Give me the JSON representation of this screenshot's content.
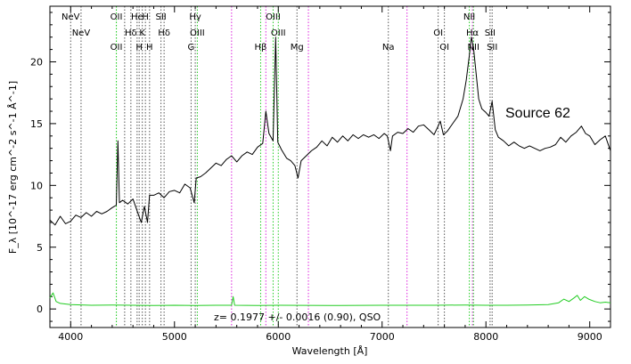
{
  "chart_data": {
    "type": "line",
    "xlabel": "Wavelength [Å]",
    "ylabel": "F_λ [10^-17 erg cm^-2 s^-1 Å^-1]",
    "xlim": [
      3800,
      9200
    ],
    "ylim": [
      -1.5,
      24.5
    ],
    "x_ticks": [
      4000,
      5000,
      6000,
      7000,
      8000,
      9000
    ],
    "y_ticks": [
      0,
      5,
      10,
      15,
      20
    ],
    "source_label": "Source 62",
    "redshift_text": "z= 0.1977 +/- 0.0016 (0.90), QSO",
    "series": [
      {
        "color": "#000000",
        "points": [
          [
            3800,
            7.2
          ],
          [
            3850,
            6.8
          ],
          [
            3900,
            7.5
          ],
          [
            3950,
            6.9
          ],
          [
            4000,
            7.1
          ],
          [
            4050,
            7.6
          ],
          [
            4100,
            7.4
          ],
          [
            4150,
            7.8
          ],
          [
            4200,
            7.5
          ],
          [
            4250,
            7.9
          ],
          [
            4300,
            7.7
          ],
          [
            4350,
            7.9
          ],
          [
            4400,
            8.2
          ],
          [
            4440,
            8.4
          ],
          [
            4455,
            13.6
          ],
          [
            4470,
            8.6
          ],
          [
            4500,
            8.8
          ],
          [
            4550,
            8.5
          ],
          [
            4600,
            8.9
          ],
          [
            4650,
            7.7
          ],
          [
            4680,
            7.0
          ],
          [
            4710,
            8.3
          ],
          [
            4740,
            7.0
          ],
          [
            4760,
            9.2
          ],
          [
            4800,
            9.2
          ],
          [
            4850,
            9.4
          ],
          [
            4900,
            9.0
          ],
          [
            4950,
            9.5
          ],
          [
            5000,
            9.6
          ],
          [
            5050,
            9.4
          ],
          [
            5100,
            10.1
          ],
          [
            5150,
            9.8
          ],
          [
            5190,
            8.6
          ],
          [
            5210,
            10.6
          ],
          [
            5250,
            10.7
          ],
          [
            5300,
            11.0
          ],
          [
            5350,
            11.4
          ],
          [
            5400,
            11.8
          ],
          [
            5450,
            11.6
          ],
          [
            5500,
            12.1
          ],
          [
            5550,
            12.4
          ],
          [
            5600,
            11.9
          ],
          [
            5650,
            12.4
          ],
          [
            5700,
            12.7
          ],
          [
            5750,
            12.5
          ],
          [
            5800,
            13.1
          ],
          [
            5850,
            13.4
          ],
          [
            5880,
            16.0
          ],
          [
            5910,
            14.2
          ],
          [
            5950,
            13.6
          ],
          [
            5975,
            22.0
          ],
          [
            5995,
            13.5
          ],
          [
            6030,
            12.9
          ],
          [
            6080,
            12.2
          ],
          [
            6120,
            12.0
          ],
          [
            6160,
            11.6
          ],
          [
            6190,
            10.6
          ],
          [
            6220,
            12.0
          ],
          [
            6270,
            12.4
          ],
          [
            6320,
            12.8
          ],
          [
            6370,
            13.1
          ],
          [
            6420,
            13.6
          ],
          [
            6470,
            13.2
          ],
          [
            6520,
            13.9
          ],
          [
            6570,
            13.5
          ],
          [
            6620,
            14.0
          ],
          [
            6670,
            13.6
          ],
          [
            6720,
            14.1
          ],
          [
            6770,
            13.8
          ],
          [
            6820,
            14.1
          ],
          [
            6870,
            13.9
          ],
          [
            6920,
            14.1
          ],
          [
            6970,
            13.8
          ],
          [
            7020,
            14.2
          ],
          [
            7050,
            14.0
          ],
          [
            7080,
            12.8
          ],
          [
            7100,
            14.0
          ],
          [
            7150,
            14.3
          ],
          [
            7200,
            14.2
          ],
          [
            7250,
            14.6
          ],
          [
            7300,
            14.3
          ],
          [
            7350,
            14.8
          ],
          [
            7400,
            14.9
          ],
          [
            7450,
            14.5
          ],
          [
            7500,
            14.1
          ],
          [
            7540,
            14.8
          ],
          [
            7560,
            15.2
          ],
          [
            7590,
            14.1
          ],
          [
            7630,
            14.4
          ],
          [
            7680,
            15.0
          ],
          [
            7730,
            15.6
          ],
          [
            7780,
            17.0
          ],
          [
            7810,
            18.5
          ],
          [
            7840,
            20.5
          ],
          [
            7860,
            22.0
          ],
          [
            7880,
            21.2
          ],
          [
            7900,
            19.5
          ],
          [
            7930,
            17.0
          ],
          [
            7960,
            16.2
          ],
          [
            8000,
            15.9
          ],
          [
            8030,
            15.6
          ],
          [
            8060,
            16.8
          ],
          [
            8090,
            14.5
          ],
          [
            8120,
            13.9
          ],
          [
            8170,
            13.6
          ],
          [
            8220,
            13.2
          ],
          [
            8270,
            13.5
          ],
          [
            8320,
            13.2
          ],
          [
            8370,
            13.0
          ],
          [
            8420,
            13.2
          ],
          [
            8470,
            13.0
          ],
          [
            8520,
            12.8
          ],
          [
            8570,
            13.0
          ],
          [
            8620,
            13.1
          ],
          [
            8670,
            13.3
          ],
          [
            8720,
            13.9
          ],
          [
            8770,
            13.5
          ],
          [
            8820,
            14.0
          ],
          [
            8870,
            14.3
          ],
          [
            8920,
            14.8
          ],
          [
            8960,
            14.2
          ],
          [
            9000,
            14.0
          ],
          [
            9050,
            13.3
          ],
          [
            9100,
            13.7
          ],
          [
            9150,
            14.0
          ],
          [
            9200,
            12.8
          ]
        ]
      },
      {
        "color": "#22cc22",
        "points": [
          [
            3800,
            0.9
          ],
          [
            3830,
            1.3
          ],
          [
            3860,
            0.6
          ],
          [
            3900,
            0.45
          ],
          [
            4000,
            0.35
          ],
          [
            4200,
            0.3
          ],
          [
            4400,
            0.32
          ],
          [
            4600,
            0.3
          ],
          [
            4800,
            0.28
          ],
          [
            5000,
            0.3
          ],
          [
            5200,
            0.28
          ],
          [
            5400,
            0.3
          ],
          [
            5550,
            0.3
          ],
          [
            5565,
            1.0
          ],
          [
            5580,
            0.3
          ],
          [
            5800,
            0.28
          ],
          [
            6000,
            0.3
          ],
          [
            6500,
            0.28
          ],
          [
            7000,
            0.3
          ],
          [
            7500,
            0.3
          ],
          [
            7800,
            0.32
          ],
          [
            8000,
            0.3
          ],
          [
            8200,
            0.3
          ],
          [
            8400,
            0.32
          ],
          [
            8600,
            0.35
          ],
          [
            8700,
            0.5
          ],
          [
            8750,
            0.8
          ],
          [
            8800,
            0.6
          ],
          [
            8850,
            0.9
          ],
          [
            8880,
            1.1
          ],
          [
            8910,
            0.7
          ],
          [
            8950,
            1.0
          ],
          [
            8990,
            0.8
          ],
          [
            9050,
            0.6
          ],
          [
            9100,
            0.5
          ],
          [
            9150,
            0.55
          ],
          [
            9200,
            0.5
          ]
        ]
      }
    ],
    "lines": [
      {
        "x": 4000,
        "color": "#555555",
        "label": "NeV",
        "row": 0
      },
      {
        "x": 4100,
        "color": "#555555",
        "label": "NeV",
        "row": 1
      },
      {
        "x": 4440,
        "color": "#22cc22",
        "label": "OII",
        "row": 0
      },
      {
        "x": 4440,
        "color": "#22cc22",
        "label": "OII",
        "row": 2
      },
      {
        "x": 4520,
        "color": "#555555",
        "label": "",
        "row": -1
      },
      {
        "x": 4580,
        "color": "#555555",
        "label": "Hδ",
        "row": 1
      },
      {
        "x": 4640,
        "color": "#555555",
        "label": "He",
        "row": 0
      },
      {
        "x": 4660,
        "color": "#555555",
        "label": "H",
        "row": 2
      },
      {
        "x": 4690,
        "color": "#555555",
        "label": "K",
        "row": 1
      },
      {
        "x": 4720,
        "color": "#555555",
        "label": "H",
        "row": 0
      },
      {
        "x": 4760,
        "color": "#555555",
        "label": "H",
        "row": 2
      },
      {
        "x": 4870,
        "color": "#555555",
        "label": "SII",
        "row": 0
      },
      {
        "x": 4900,
        "color": "#555555",
        "label": "Hδ",
        "row": 1
      },
      {
        "x": 5160,
        "color": "#555555",
        "label": "G",
        "row": 2
      },
      {
        "x": 5200,
        "color": "#555555",
        "label": "Hγ",
        "row": 0
      },
      {
        "x": 5220,
        "color": "#22cc22",
        "label": "OIII",
        "row": 1
      },
      {
        "x": 5550,
        "color": "#dd22dd",
        "label": "",
        "row": -1
      },
      {
        "x": 5830,
        "color": "#22cc22",
        "label": "Hβ",
        "row": 2
      },
      {
        "x": 5880,
        "color": "#dd22dd",
        "label": "",
        "row": -1
      },
      {
        "x": 5950,
        "color": "#22cc22",
        "label": "OIII",
        "row": 0
      },
      {
        "x": 6000,
        "color": "#22cc22",
        "label": "OIII",
        "row": 1
      },
      {
        "x": 6180,
        "color": "#555555",
        "label": "Mg",
        "row": 2
      },
      {
        "x": 6290,
        "color": "#dd22dd",
        "label": "",
        "row": -1
      },
      {
        "x": 7060,
        "color": "#555555",
        "label": "Na",
        "row": 2
      },
      {
        "x": 7240,
        "color": "#dd22dd",
        "label": "",
        "row": -1
      },
      {
        "x": 7540,
        "color": "#555555",
        "label": "OI",
        "row": 1
      },
      {
        "x": 7600,
        "color": "#555555",
        "label": "OI",
        "row": 2
      },
      {
        "x": 7840,
        "color": "#22cc22",
        "label": "NII",
        "row": 0
      },
      {
        "x": 7870,
        "color": "#dd22dd",
        "label": "Hα",
        "row": 1
      },
      {
        "x": 7880,
        "color": "#22cc22",
        "label": "NII",
        "row": 2
      },
      {
        "x": 8040,
        "color": "#555555",
        "label": "SII",
        "row": 1
      },
      {
        "x": 8060,
        "color": "#555555",
        "label": "SII",
        "row": 2
      }
    ]
  }
}
